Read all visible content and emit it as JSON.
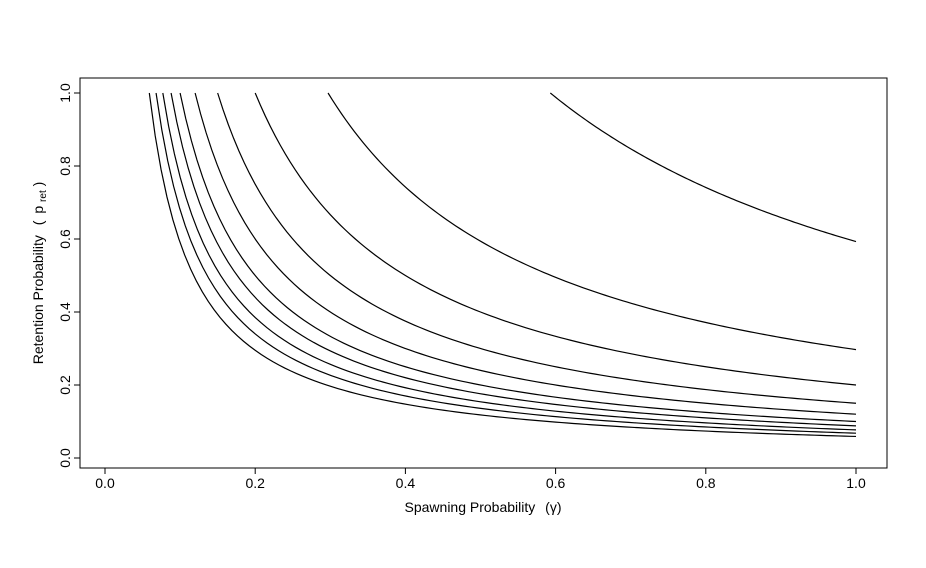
{
  "chart_data": {
    "type": "line",
    "xlabel": "Spawning Probability",
    "xlabel_symbol": "(γ)",
    "ylabel": "Retention Probability",
    "ylabel_symbol_base": "p",
    "ylabel_symbol_sub": "ret",
    "xlim": [
      0,
      1
    ],
    "ylim": [
      0,
      1
    ],
    "x_ticks": [
      0.0,
      0.2,
      0.4,
      0.6,
      0.8,
      1.0
    ],
    "x_tick_labels": [
      "0.0",
      "0.2",
      "0.4",
      "0.6",
      "0.8",
      "1.0"
    ],
    "y_ticks": [
      0.0,
      0.2,
      0.4,
      0.6,
      0.8,
      1.0
    ],
    "y_tick_labels": [
      "0.0",
      "0.2",
      "0.4",
      "0.6",
      "0.8",
      "1.0"
    ],
    "grid": false,
    "legend": "none",
    "line_color": "#000000",
    "curve_form": "y = k / x, for x from k to 1",
    "series": [
      {
        "k": 0.059
      },
      {
        "k": 0.068
      },
      {
        "k": 0.077
      },
      {
        "k": 0.088
      },
      {
        "k": 0.1
      },
      {
        "k": 0.12
      },
      {
        "k": 0.15
      },
      {
        "k": 0.2
      },
      {
        "k": 0.297
      },
      {
        "k": 0.593
      }
    ]
  }
}
